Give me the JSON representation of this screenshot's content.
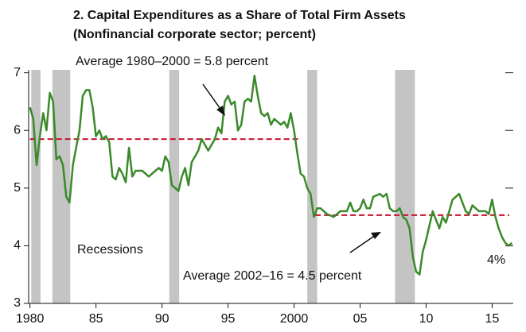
{
  "chart_data": {
    "type": "line",
    "title": "2. Capital Expenditures as a Share of Total Firm Assets",
    "subtitle": "(Nonfinancial corporate sector; percent)",
    "annotations": [
      "Average 1980–2000 = 5.8 percent",
      "Average 2002–16 = 4.5 percent",
      "Recessions",
      "4%"
    ],
    "xlim": [
      1979.9,
      2016.6
    ],
    "xticks": [
      1980,
      {
        "value": 1985,
        "label": "85"
      },
      {
        "value": 1990,
        "label": "90"
      },
      {
        "value": 1995,
        "label": "95"
      },
      2000,
      {
        "value": 2005,
        "label": "05"
      },
      {
        "value": 2010,
        "label": "10"
      },
      {
        "value": 2015,
        "label": "15"
      }
    ],
    "ylim": [
      3,
      7.05
    ],
    "yticks": [
      3,
      4,
      5,
      6,
      7
    ],
    "recessions": [
      [
        1980.1,
        1980.8
      ],
      [
        1981.7,
        1983.05
      ],
      [
        1990.55,
        1991.3
      ],
      [
        2001.0,
        2001.75
      ],
      [
        2007.65,
        2009.15
      ]
    ],
    "averages": [
      {
        "from": 1980,
        "to": 2000.5,
        "value": 5.85
      },
      {
        "from": 2001.6,
        "to": 2016.3,
        "value": 4.53
      }
    ],
    "average_color": "#c8102e",
    "recession_color": "#c4c4c4",
    "series": [
      {
        "color": "#3a8a2a",
        "x": [
          1980,
          1980.25,
          1980.5,
          1980.75,
          1981,
          1981.25,
          1981.5,
          1981.75,
          1982,
          1982.25,
          1982.5,
          1982.75,
          1983,
          1983.25,
          1983.5,
          1983.75,
          1984,
          1984.25,
          1984.5,
          1984.75,
          1985,
          1985.25,
          1985.5,
          1985.75,
          1986,
          1986.25,
          1986.5,
          1986.75,
          1987,
          1987.25,
          1987.5,
          1987.75,
          1988,
          1988.5,
          1988.75,
          1989,
          1989.5,
          1989.75,
          1990,
          1990.25,
          1990.5,
          1990.75,
          1991,
          1991.25,
          1991.5,
          1991.75,
          1992,
          1992.25,
          1992.5,
          1992.75,
          1993,
          1993.5,
          1993.75,
          1994,
          1994.25,
          1994.5,
          1994.75,
          1995,
          1995.25,
          1995.5,
          1995.75,
          1996,
          1996.25,
          1996.5,
          1996.75,
          1997,
          1997.25,
          1997.5,
          1997.75,
          1998,
          1998.25,
          1998.5,
          1998.75,
          1999,
          1999.25,
          1999.5,
          1999.75,
          2000,
          2000.25,
          2000.5,
          2000.75,
          2001,
          2001.25,
          2001.5,
          2001.75,
          2002,
          2002.5,
          2003,
          2003.25,
          2003.5,
          2004,
          2004.25,
          2004.5,
          2004.75,
          2005,
          2005.25,
          2005.5,
          2005.75,
          2006,
          2006.5,
          2006.75,
          2007,
          2007.25,
          2007.5,
          2007.75,
          2008,
          2008.25,
          2008.5,
          2008.75,
          2009,
          2009.25,
          2009.5,
          2009.75,
          2010,
          2010.25,
          2010.5,
          2010.75,
          2011,
          2011.25,
          2011.5,
          2011.75,
          2012,
          2012.5,
          2012.75,
          2013,
          2013.25,
          2013.5,
          2013.75,
          2014,
          2014.5,
          2014.75,
          2015,
          2015.25,
          2015.5,
          2015.75,
          2016,
          2016.25,
          2016.5
        ],
        "values": [
          6.4,
          6.2,
          5.4,
          5.9,
          6.3,
          6.0,
          6.65,
          6.5,
          5.5,
          5.55,
          5.4,
          4.85,
          4.75,
          5.4,
          5.7,
          6.0,
          6.6,
          6.7,
          6.7,
          6.4,
          5.9,
          6.0,
          5.85,
          5.9,
          5.8,
          5.2,
          5.15,
          5.35,
          5.25,
          5.1,
          5.7,
          5.2,
          5.3,
          5.3,
          5.25,
          5.2,
          5.3,
          5.35,
          5.3,
          5.55,
          5.45,
          5.05,
          5.0,
          4.95,
          5.2,
          5.35,
          5.05,
          5.45,
          5.55,
          5.65,
          5.85,
          5.65,
          5.75,
          5.85,
          6.05,
          5.95,
          6.5,
          6.6,
          6.45,
          6.5,
          6.0,
          6.1,
          6.5,
          6.55,
          6.5,
          6.95,
          6.6,
          6.3,
          6.25,
          6.3,
          6.1,
          6.2,
          6.15,
          6.1,
          6.15,
          6.05,
          6.3,
          6.0,
          5.6,
          5.25,
          5.2,
          5.0,
          4.9,
          4.5,
          4.65,
          4.65,
          4.55,
          4.5,
          4.55,
          4.6,
          4.6,
          4.75,
          4.6,
          4.6,
          4.65,
          4.8,
          4.65,
          4.65,
          4.85,
          4.9,
          4.85,
          4.9,
          4.65,
          4.6,
          4.6,
          4.65,
          4.5,
          4.45,
          4.3,
          3.8,
          3.55,
          3.5,
          3.9,
          4.1,
          4.35,
          4.6,
          4.45,
          4.3,
          4.5,
          4.4,
          4.6,
          4.8,
          4.9,
          4.75,
          4.6,
          4.55,
          4.7,
          4.65,
          4.6,
          4.6,
          4.55,
          4.8,
          4.5,
          4.3,
          4.15,
          4.05,
          4.0,
          4.05
        ]
      }
    ]
  }
}
